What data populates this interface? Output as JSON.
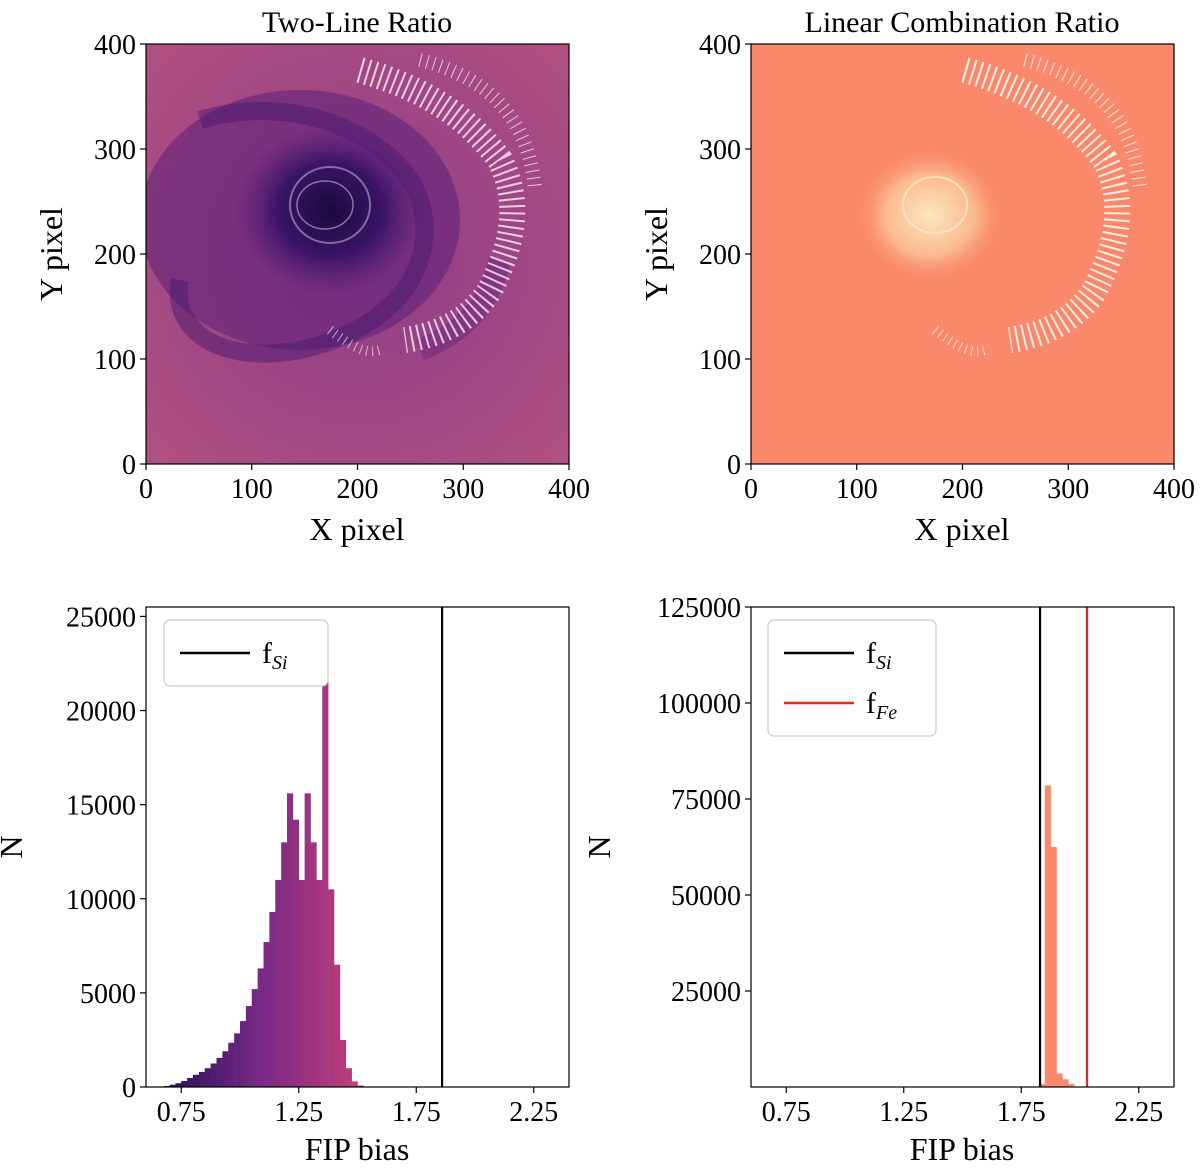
{
  "colors": {
    "magma_dark": "#2a0f59",
    "magma_mid": "#7a2a86",
    "magma_light": "#c13f7a",
    "map_base": "#a64589",
    "orange": "#f9896a",
    "orange_light": "#fbd3a8",
    "si_line": "#000000",
    "fe_line": "#e4261c"
  },
  "chart_data": [
    {
      "type": "heatmap",
      "title": "Two-Line Ratio",
      "xlabel": "X pixel",
      "ylabel": "Y pixel",
      "xlim": [
        0,
        400
      ],
      "ylim": [
        0,
        400
      ],
      "xticks": [
        "0",
        "100",
        "200",
        "300",
        "400"
      ],
      "yticks": [
        "0",
        "100",
        "200",
        "300",
        "400"
      ],
      "colormap": "magma"
    },
    {
      "type": "heatmap",
      "title": "Linear Combination Ratio",
      "xlabel": "X pixel",
      "ylabel": "Y pixel",
      "xlim": [
        0,
        400
      ],
      "ylim": [
        0,
        400
      ],
      "xticks": [
        "0",
        "100",
        "200",
        "300",
        "400"
      ],
      "yticks": [
        "0",
        "100",
        "200",
        "300",
        "400"
      ],
      "colormap": "orange"
    },
    {
      "type": "bar",
      "title": "",
      "xlabel": "FIP bias",
      "ylabel": "N",
      "xlim": [
        0.6,
        2.4
      ],
      "ylim": [
        0,
        25500
      ],
      "xticks": [
        "0.75",
        "1.25",
        "1.75",
        "2.25"
      ],
      "xtick_values": [
        0.75,
        1.25,
        1.75,
        2.25
      ],
      "yticks": [
        "0",
        "5000",
        "10000",
        "15000",
        "20000",
        "25000"
      ],
      "ytick_values": [
        0,
        5000,
        10000,
        15000,
        20000,
        25000
      ],
      "bin_width": 0.025,
      "bin_start": 0.675,
      "values": [
        50,
        120,
        200,
        320,
        480,
        650,
        800,
        1000,
        1250,
        1550,
        1900,
        2350,
        2850,
        3500,
        4300,
        5200,
        6300,
        7700,
        9300,
        11000,
        13000,
        15600,
        14200,
        11000,
        15600,
        13000,
        11000,
        24100,
        10500,
        6500,
        2500,
        1000,
        300,
        80
      ],
      "vlines": [
        {
          "x": 1.86,
          "label": "fSi",
          "color": "#000000"
        }
      ],
      "legend": [
        {
          "label": "f",
          "sub": "Si",
          "color": "#000000"
        }
      ],
      "legend_location": "upper left"
    },
    {
      "type": "bar",
      "title": "",
      "xlabel": "FIP bias",
      "ylabel": "N",
      "xlim": [
        0.6,
        2.4
      ],
      "ylim": [
        0,
        125000
      ],
      "xticks": [
        "0.75",
        "1.25",
        "1.75",
        "2.25"
      ],
      "xtick_values": [
        0.75,
        1.25,
        1.75,
        2.25
      ],
      "yticks": [
        "25000",
        "50000",
        "75000",
        "100000",
        "125000"
      ],
      "ytick_values": [
        25000,
        50000,
        75000,
        100000,
        125000
      ],
      "bin_width": 0.025,
      "bin_start": 1.825,
      "values": [
        800,
        78500,
        62500,
        3500,
        2000,
        800
      ],
      "vlines": [
        {
          "x": 1.83,
          "label": "fSi",
          "color": "#000000"
        },
        {
          "x": 2.03,
          "label": "fFe",
          "color": "#e4261c"
        }
      ],
      "legend": [
        {
          "label": "f",
          "sub": "Si",
          "color": "#000000"
        },
        {
          "label": "f",
          "sub": "Fe",
          "color": "#e4261c"
        }
      ],
      "legend_location": "upper left"
    }
  ]
}
